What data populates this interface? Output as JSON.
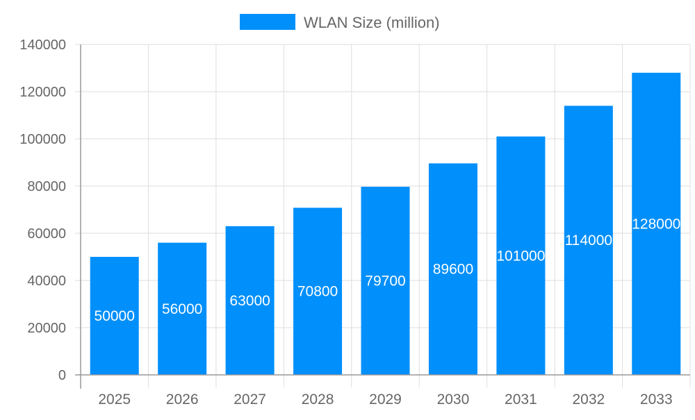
{
  "chart_data": {
    "type": "bar",
    "title": "",
    "xlabel": "",
    "ylabel": "",
    "categories": [
      "2025",
      "2026",
      "2027",
      "2028",
      "2029",
      "2030",
      "2031",
      "2032",
      "2033"
    ],
    "series": [
      {
        "name": "WLAN Size (million)",
        "values": [
          50000,
          56000,
          63000,
          70800,
          79700,
          89600,
          101000,
          114000,
          128000
        ]
      }
    ],
    "ylim": [
      0,
      140000
    ],
    "yticks": [
      0,
      20000,
      40000,
      60000,
      80000,
      100000,
      120000,
      140000
    ],
    "grid": true,
    "legend_position": "top",
    "data_labels": "inside-center",
    "colors": {
      "bar": "#008ffb",
      "grid": "#dddddd",
      "axis": "#999999",
      "tick_text": "#666666",
      "label_text": "#ffffff"
    }
  }
}
